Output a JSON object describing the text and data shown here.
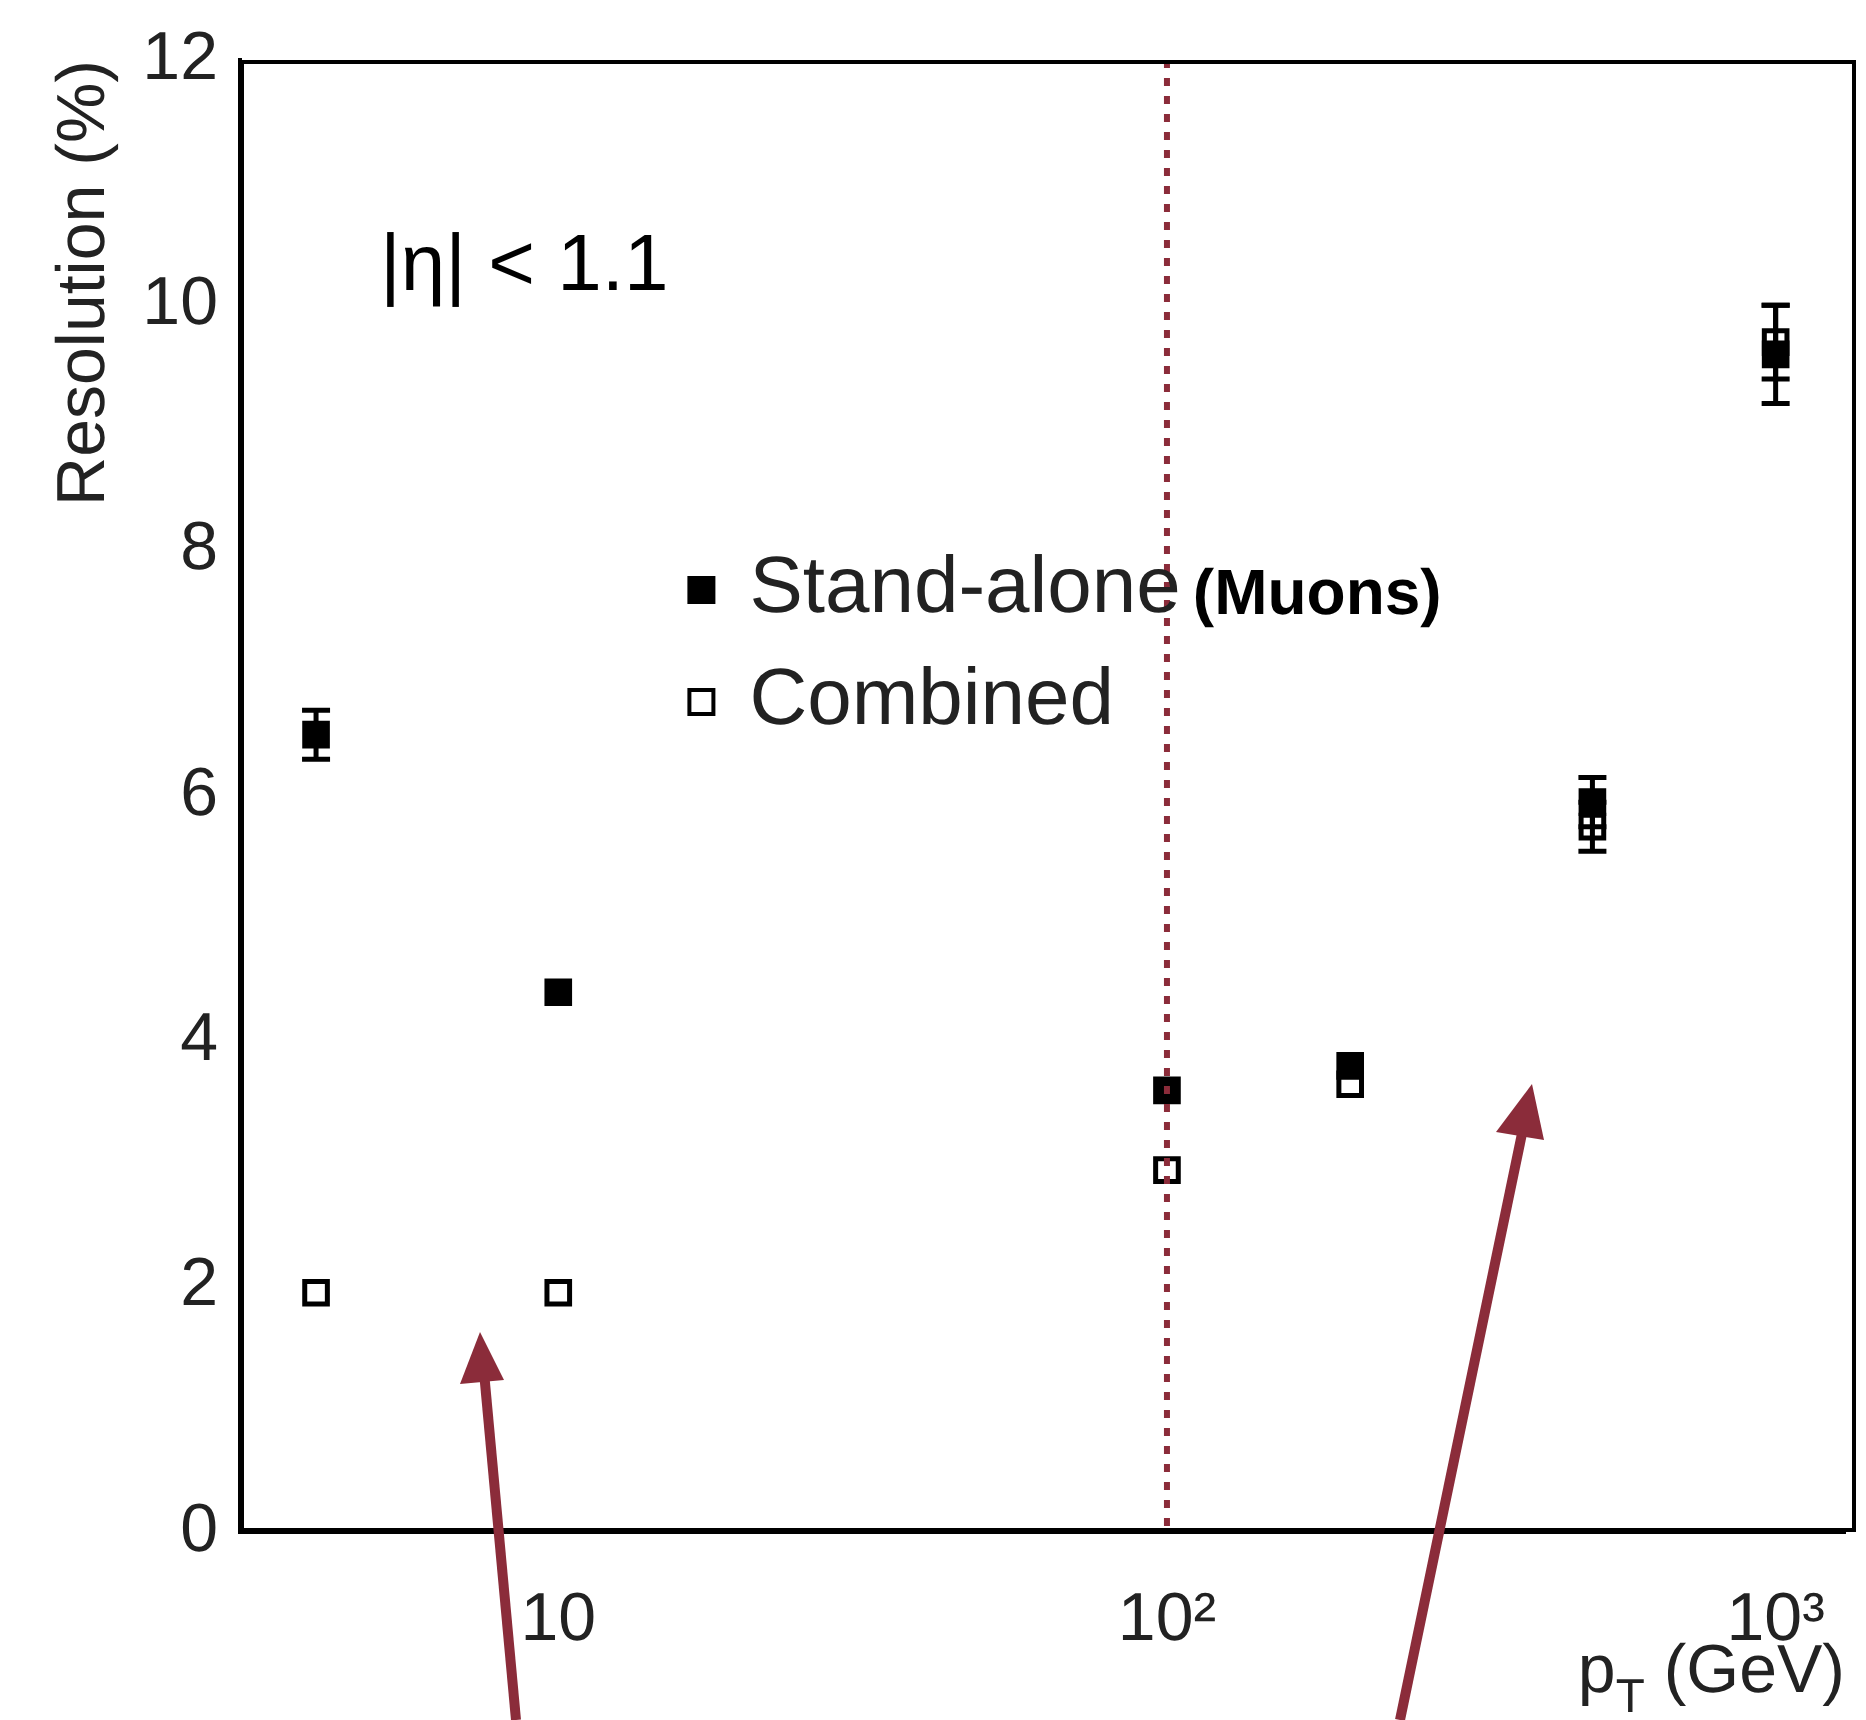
{
  "chart_data": {
    "type": "scatter",
    "xlabel": "p$_{T}$ (GeV)",
    "ylabel": "Resolution (%)",
    "x": [
      4,
      10,
      100,
      200,
      500,
      1000
    ],
    "series": [
      {
        "name": "Stand-alone",
        "color": "#000000",
        "values": [
          6.5,
          4.4,
          3.6,
          3.8,
          5.95,
          9.6
        ],
        "errors": [
          0.2,
          null,
          null,
          null,
          0.2,
          0.4
        ],
        "marker": "square"
      },
      {
        "name": "Combined",
        "color": "#000000",
        "values": [
          1.95,
          1.95,
          2.95,
          3.65,
          5.75,
          9.7
        ],
        "errors": [
          null,
          null,
          null,
          null,
          0.2,
          0.3
        ],
        "marker": "square_open"
      }
    ],
    "log": "x",
    "xlim": [
      3,
      1300
    ],
    "xticks": [
      10,
      {
        "value": 100,
        "label": "10²"
      },
      {
        "value": 1000,
        "label": "10³"
      }
    ],
    "ylim": [
      0,
      12
    ],
    "yticks": [
      0,
      2,
      4,
      6,
      8,
      10,
      12
    ],
    "grid": false,
    "legend": "top left",
    "ref_lines": [
      {
        "axis": "x",
        "value": 100,
        "label": null,
        "color": "#8b2c3a",
        "line_style": "dotted"
      }
    ],
    "annotations": [
      "|η| < 1.1",
      "(Muons)"
    ]
  }
}
